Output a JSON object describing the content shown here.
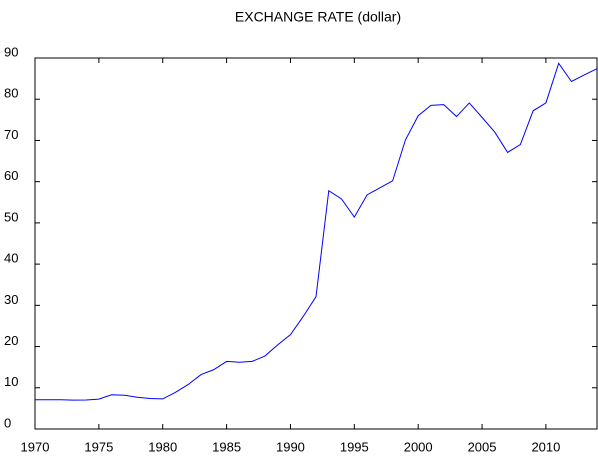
{
  "chart_data": {
    "type": "line",
    "title": "EXCHANGE RATE (dollar)",
    "x": [
      1970,
      1971,
      1972,
      1973,
      1974,
      1975,
      1976,
      1977,
      1978,
      1979,
      1980,
      1981,
      1982,
      1983,
      1984,
      1985,
      1986,
      1987,
      1988,
      1989,
      1990,
      1991,
      1992,
      1993,
      1994,
      1995,
      1996,
      1997,
      1998,
      1999,
      2000,
      2001,
      2002,
      2003,
      2004,
      2005,
      2006,
      2007,
      2008,
      2009,
      2010,
      2011,
      2012,
      2013,
      2014
    ],
    "series": [
      {
        "color": "#0000ff",
        "values": [
          7.1,
          7.1,
          7.1,
          7.0,
          7.05,
          7.25,
          8.3,
          8.2,
          7.7,
          7.4,
          7.3,
          8.9,
          10.8,
          13.2,
          14.4,
          16.4,
          16.2,
          16.4,
          17.7,
          20.4,
          22.9,
          27.3,
          32.1,
          57.8,
          55.8,
          51.4,
          56.8,
          58.5,
          60.2,
          70.1,
          76.0,
          78.5,
          78.7,
          75.8,
          79.1,
          75.6,
          72.0,
          67.1,
          69.0,
          77.2,
          79.1,
          88.7,
          84.3,
          85.9,
          87.4
        ]
      }
    ],
    "xlim": [
      1970,
      2014
    ],
    "xticks": [
      1970,
      1975,
      1980,
      1985,
      1990,
      1995,
      2000,
      2005,
      2010
    ],
    "ylim": [
      0,
      90
    ],
    "yticks": [
      0,
      10,
      20,
      30,
      40,
      50,
      60,
      70,
      80,
      90
    ]
  }
}
